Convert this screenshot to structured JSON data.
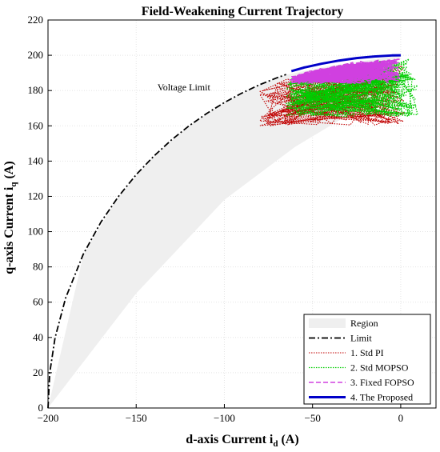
{
  "chart_data": {
    "type": "line",
    "title": "Field-Weakening Current Trajectory",
    "xlabel": "d-axis Current i",
    "xlabel_sub": "d",
    "xlabel_unit": " (A)",
    "ylabel": "q-axis Current i",
    "ylabel_sub": "q",
    "ylabel_unit": " (A)",
    "xlim": [
      -200,
      20
    ],
    "ylim": [
      0,
      220
    ],
    "x_ticks": [
      -200,
      -150,
      -100,
      -50,
      0
    ],
    "y_ticks": [
      0,
      20,
      40,
      60,
      80,
      100,
      120,
      140,
      160,
      180,
      200,
      220
    ],
    "grid": true,
    "legend_position": "bottom-right",
    "annotations": [
      {
        "text": "Voltage Limit",
        "x": -123,
        "y": 180
      }
    ],
    "region": {
      "name": "Region",
      "color": "#efefef",
      "polygon": [
        [
          -200,
          0
        ],
        [
          -180,
          86.7
        ],
        [
          -160,
          120
        ],
        [
          -140,
          142.8
        ],
        [
          -120,
          160
        ],
        [
          -100,
          173.2
        ],
        [
          -80,
          183.3
        ],
        [
          -65,
          189
        ],
        [
          -40,
          194
        ],
        [
          -20,
          197
        ],
        [
          0,
          200
        ],
        [
          -8,
          181
        ],
        [
          -18,
          173
        ],
        [
          -35,
          163
        ],
        [
          -60,
          148
        ],
        [
          -100,
          118
        ],
        [
          -150,
          65
        ],
        [
          -200,
          0
        ]
      ]
    },
    "series": [
      {
        "name": "Limit",
        "color": "#000000",
        "style": "dashdot",
        "width": 1.8,
        "x": [
          -200,
          -199,
          -196,
          -190,
          -180,
          -170,
          -160,
          -150,
          -140,
          -130,
          -120,
          -110,
          -100,
          -90,
          -80,
          -70,
          -65
        ],
        "y": [
          0,
          20,
          39.8,
          62.4,
          87.2,
          105.4,
          120,
          132.3,
          142.8,
          152,
          160,
          167,
          173.2,
          178.6,
          183.3,
          187.3,
          189.1
        ]
      },
      {
        "name": "1. Std PI",
        "color": "#c00000",
        "style": "dotted",
        "width": 1.1,
        "type": "band",
        "x_range": [
          -80,
          2
        ],
        "y_range": [
          160,
          194
        ]
      },
      {
        "name": "2. Std MOPSO",
        "color": "#00cc00",
        "style": "dotted",
        "width": 1.2,
        "type": "band",
        "x_range": [
          -65,
          10
        ],
        "y_range": [
          165,
          198
        ]
      },
      {
        "name": "3. Fixed FOPSO",
        "color": "#d040e0",
        "style": "dashed",
        "width": 1.4,
        "type": "band",
        "x_range": [
          -63,
          0
        ],
        "y_range": [
          184,
          199
        ]
      },
      {
        "name": "4. The Proposed",
        "color": "#0000c8",
        "style": "solid",
        "width": 3,
        "x": [
          -62,
          -55,
          -45,
          -35,
          -25,
          -15,
          -5,
          0
        ],
        "y": [
          191,
          193,
          195.2,
          197,
          198.4,
          199.3,
          199.9,
          200
        ]
      }
    ]
  }
}
